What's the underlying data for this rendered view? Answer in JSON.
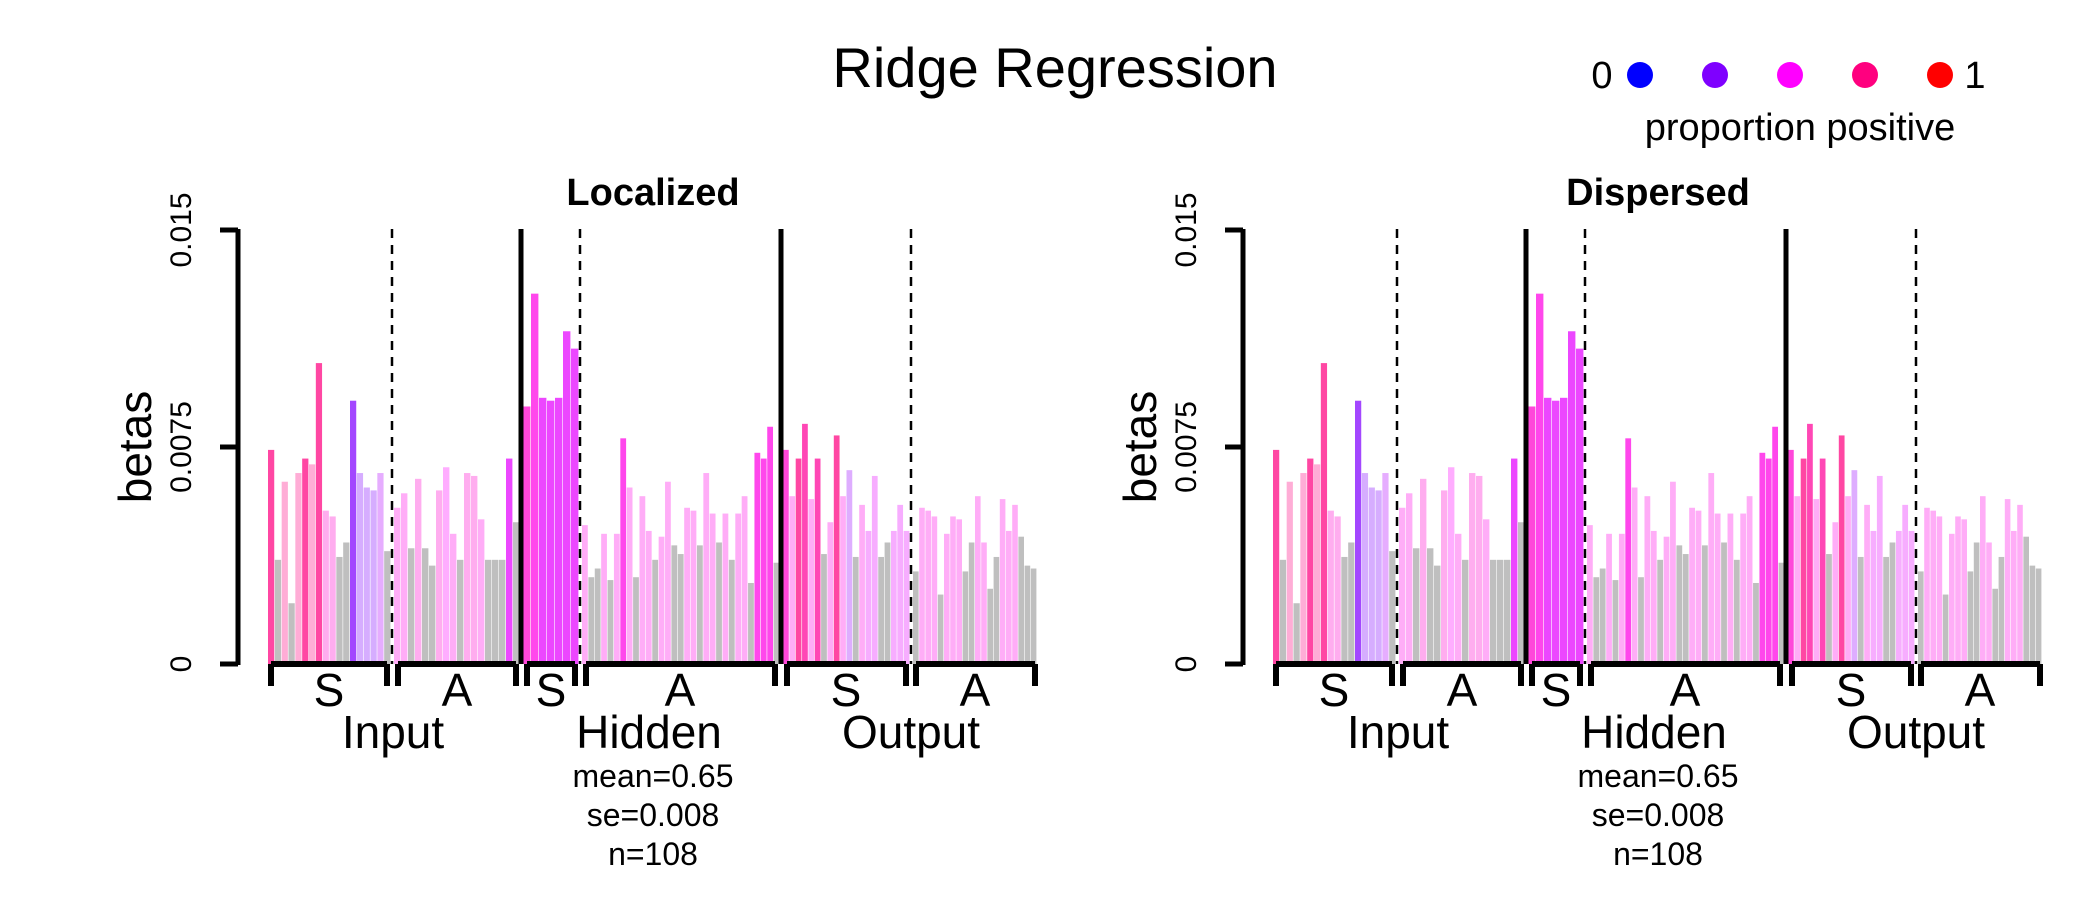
{
  "title": "Ridge Regression",
  "legend": {
    "low_label": "0",
    "high_label": "1",
    "caption": "proportion positive",
    "colors": [
      "#0000FF",
      "#7F00FF",
      "#FF00FF",
      "#FF007F",
      "#FF0000"
    ]
  },
  "colors": {
    "axis": "#000000",
    "nonsignificant": "#BFBFBF"
  },
  "chart_data": [
    {
      "type": "bar",
      "title": "Localized",
      "ylabel": "betas",
      "ylim": [
        0,
        0.015
      ],
      "yticks": [
        0,
        0.0075,
        0.015
      ],
      "ytick_labels": [
        "0",
        "0.0075",
        "0.015"
      ],
      "sections": [
        {
          "label": "Input",
          "groups": [
            {
              "label": "S",
              "values": [
                0.0074,
                0.0036,
                0.0063,
                0.0021,
                0.0066,
                0.0071,
                0.0069,
                0.0104,
                0.0053,
                0.0051,
                0.0037,
                0.0042,
                0.0091,
                0.0066,
                0.0061,
                0.006,
                0.0066,
                0.0039
              ],
              "proportions": [
                0.75,
                null,
                0.75,
                null,
                0.75,
                0.75,
                0.75,
                0.75,
                0.6,
                0.6,
                null,
                null,
                0.25,
                0.25,
                0.25,
                0.25,
                0.35,
                null
              ]
            },
            {
              "label": "A",
              "values": [
                0.0054,
                0.0059,
                0.004,
                0.0064,
                0.004,
                0.0034,
                0.006,
                0.0068,
                0.0045,
                0.0036,
                0.0066,
                0.0065,
                0.005,
                0.0036,
                0.0036,
                0.0036,
                0.0071,
                0.0049
              ],
              "proportions": [
                0.55,
                0.55,
                null,
                0.6,
                null,
                null,
                0.6,
                0.5,
                0.55,
                null,
                0.6,
                0.6,
                0.55,
                null,
                null,
                null,
                0.45,
                null
              ]
            }
          ]
        },
        {
          "label": "Hidden",
          "groups": [
            {
              "label": "S",
              "values": [
                0.0089,
                0.0128,
                0.0092,
                0.0091,
                0.0092,
                0.0115,
                0.0109
              ],
              "proportions": [
                0.6,
                0.55,
                0.45,
                0.45,
                0.45,
                0.45,
                0.45
              ]
            },
            {
              "label": "A",
              "values": [
                0.0048,
                0.003,
                0.0033,
                0.0045,
                0.0029,
                0.0045,
                0.0078,
                0.0061,
                0.003,
                0.0058,
                0.0046,
                0.0036,
                0.0044,
                0.0063,
                0.0041,
                0.0038,
                0.0054,
                0.0053,
                0.0041,
                0.0066,
                0.0052,
                0.0042,
                0.0052,
                0.0036,
                0.0052,
                0.0058,
                0.0028,
                0.0073,
                0.0071,
                0.0082,
                0.0035
              ],
              "proportions": [
                0.55,
                null,
                null,
                0.55,
                null,
                0.55,
                0.55,
                0.55,
                null,
                0.55,
                0.55,
                null,
                0.55,
                0.55,
                null,
                null,
                0.55,
                0.55,
                null,
                0.55,
                0.55,
                null,
                0.55,
                null,
                0.55,
                0.55,
                null,
                0.55,
                0.55,
                0.55,
                null
              ]
            }
          ]
        },
        {
          "label": "Output",
          "groups": [
            {
              "label": "S",
              "values": [
                0.0074,
                0.0058,
                0.0071,
                0.0083,
                0.0057,
                0.0071,
                0.0038,
                0.0049,
                0.0079,
                0.0058,
                0.0067,
                0.0037,
                0.0055,
                0.0046,
                0.0065,
                0.0037,
                0.0042,
                0.0046,
                0.0055,
                0.0046
              ],
              "proportions": [
                0.6,
                0.55,
                0.75,
                0.7,
                0.55,
                0.7,
                null,
                0.55,
                0.75,
                0.55,
                0.3,
                null,
                0.55,
                0.45,
                0.45,
                null,
                null,
                0.45,
                0.45,
                0.45
              ]
            },
            {
              "label": "A",
              "values": [
                0.0032,
                0.0054,
                0.0053,
                0.0051,
                0.0024,
                0.0045,
                0.0051,
                0.005,
                0.0032,
                0.0042,
                0.0058,
                0.0042,
                0.0026,
                0.0037,
                0.0057,
                0.0046,
                0.0055,
                0.0044,
                0.0034,
                0.0033
              ],
              "proportions": [
                null,
                0.55,
                0.55,
                0.55,
                null,
                0.55,
                0.55,
                0.55,
                null,
                null,
                0.55,
                0.55,
                null,
                null,
                0.55,
                0.55,
                0.55,
                null,
                null,
                null
              ]
            }
          ]
        }
      ],
      "stats": {
        "mean": "mean=0.65",
        "se": "se=0.008",
        "n": "n=108"
      }
    },
    {
      "type": "bar",
      "title": "Dispersed",
      "ylabel": "betas",
      "ylim": [
        0,
        0.015
      ],
      "yticks": [
        0,
        0.0075,
        0.015
      ],
      "ytick_labels": [
        "0",
        "0.0075",
        "0.015"
      ],
      "sections": [
        {
          "label": "Input",
          "groups": [
            {
              "label": "S",
              "values": [
                0.0074,
                0.0036,
                0.0063,
                0.0021,
                0.0066,
                0.0071,
                0.0069,
                0.0104,
                0.0053,
                0.0051,
                0.0037,
                0.0042,
                0.0091,
                0.0066,
                0.0061,
                0.006,
                0.0066,
                0.0039
              ],
              "proportions": [
                0.75,
                null,
                0.75,
                null,
                0.75,
                0.75,
                0.75,
                0.75,
                0.6,
                0.6,
                null,
                null,
                0.25,
                0.25,
                0.25,
                0.25,
                0.35,
                null
              ]
            },
            {
              "label": "A",
              "values": [
                0.0054,
                0.0059,
                0.004,
                0.0064,
                0.004,
                0.0034,
                0.006,
                0.0068,
                0.0045,
                0.0036,
                0.0066,
                0.0065,
                0.005,
                0.0036,
                0.0036,
                0.0036,
                0.0071,
                0.0049
              ],
              "proportions": [
                0.55,
                0.55,
                null,
                0.6,
                null,
                null,
                0.6,
                0.5,
                0.55,
                null,
                0.6,
                0.6,
                0.55,
                null,
                null,
                null,
                0.45,
                null
              ]
            }
          ]
        },
        {
          "label": "Hidden",
          "groups": [
            {
              "label": "S",
              "values": [
                0.0089,
                0.0128,
                0.0092,
                0.0091,
                0.0092,
                0.0115,
                0.0109
              ],
              "proportions": [
                0.6,
                0.55,
                0.45,
                0.45,
                0.45,
                0.45,
                0.45
              ]
            },
            {
              "label": "A",
              "values": [
                0.0048,
                0.003,
                0.0033,
                0.0045,
                0.0029,
                0.0045,
                0.0078,
                0.0061,
                0.003,
                0.0058,
                0.0046,
                0.0036,
                0.0044,
                0.0063,
                0.0041,
                0.0038,
                0.0054,
                0.0053,
                0.0041,
                0.0066,
                0.0052,
                0.0042,
                0.0052,
                0.0036,
                0.0052,
                0.0058,
                0.0028,
                0.0073,
                0.0071,
                0.0082,
                0.0035
              ],
              "proportions": [
                0.55,
                null,
                null,
                0.55,
                null,
                0.55,
                0.55,
                0.55,
                null,
                0.55,
                0.55,
                null,
                0.55,
                0.55,
                null,
                null,
                0.55,
                0.55,
                null,
                0.55,
                0.55,
                null,
                0.55,
                null,
                0.55,
                0.55,
                null,
                0.55,
                0.55,
                0.55,
                null
              ]
            }
          ]
        },
        {
          "label": "Output",
          "groups": [
            {
              "label": "S",
              "values": [
                0.0074,
                0.0058,
                0.0071,
                0.0083,
                0.0057,
                0.0071,
                0.0038,
                0.0049,
                0.0079,
                0.0058,
                0.0067,
                0.0037,
                0.0055,
                0.0046,
                0.0065,
                0.0037,
                0.0042,
                0.0046,
                0.0055,
                0.0046
              ],
              "proportions": [
                0.6,
                0.55,
                0.75,
                0.7,
                0.55,
                0.7,
                null,
                0.55,
                0.75,
                0.55,
                0.3,
                null,
                0.55,
                0.45,
                0.45,
                null,
                null,
                0.45,
                0.45,
                0.45
              ]
            },
            {
              "label": "A",
              "values": [
                0.0032,
                0.0054,
                0.0053,
                0.0051,
                0.0024,
                0.0045,
                0.0051,
                0.005,
                0.0032,
                0.0042,
                0.0058,
                0.0042,
                0.0026,
                0.0037,
                0.0057,
                0.0046,
                0.0055,
                0.0044,
                0.0034,
                0.0033
              ],
              "proportions": [
                null,
                0.55,
                0.55,
                0.55,
                null,
                0.55,
                0.55,
                0.55,
                null,
                null,
                0.55,
                0.55,
                null,
                null,
                0.55,
                0.55,
                0.55,
                null,
                null,
                null
              ]
            }
          ]
        }
      ],
      "stats": {
        "mean": "mean=0.65",
        "se": "se=0.008",
        "n": "n=108"
      }
    }
  ]
}
